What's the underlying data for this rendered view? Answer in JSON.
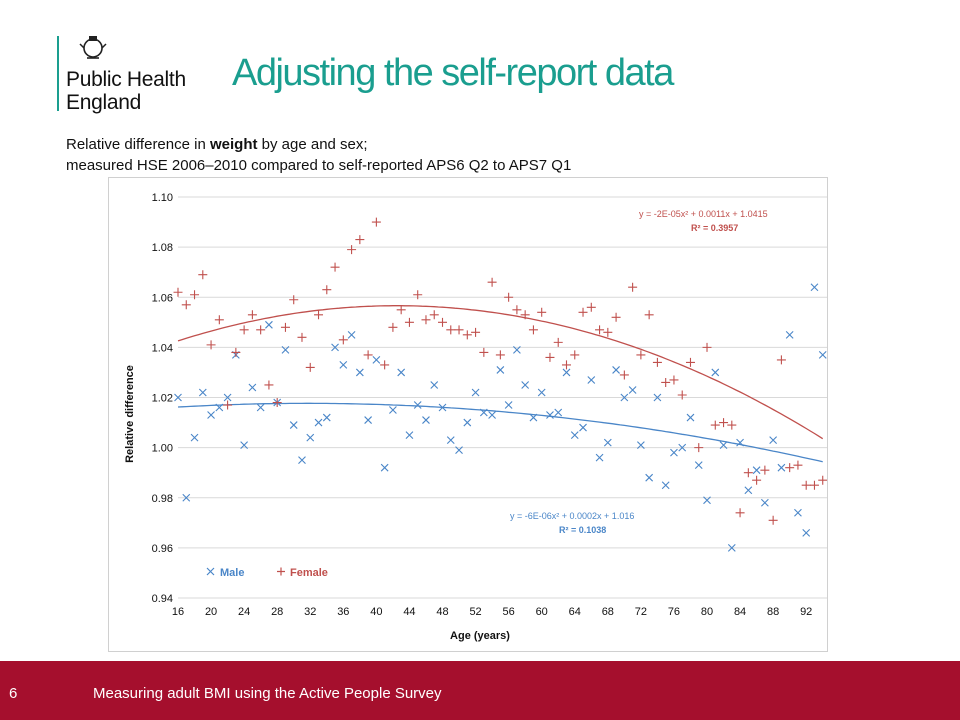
{
  "org": {
    "name_line1": "Public Health",
    "name_line2": "England"
  },
  "title": "Adjusting the self-report data",
  "subtitle": {
    "line1_before": "Relative difference in ",
    "line1_bold": "weight",
    "line1_after": " by age and sex;",
    "line2": "measured HSE 2006–2010 compared to self-reported APS6 Q2 to APS7 Q1"
  },
  "footer": {
    "page_number": "6",
    "text": "Measuring adult BMI using the Active People Survey"
  },
  "colors": {
    "accent": "#1a9e8f",
    "footer": "#a50f2d",
    "male": "#4a86c8",
    "female": "#c0504d"
  },
  "chart_data": {
    "type": "scatter",
    "xlabel": "Age (years)",
    "ylabel": "Relative difference",
    "xlim": [
      16,
      95
    ],
    "ylim": [
      0.94,
      1.1
    ],
    "x_ticks": [
      16,
      20,
      24,
      28,
      32,
      36,
      40,
      44,
      48,
      52,
      56,
      60,
      64,
      68,
      72,
      76,
      80,
      84,
      88,
      92
    ],
    "y_ticks": [
      0.94,
      0.96,
      0.98,
      1.0,
      1.02,
      1.04,
      1.06,
      1.08,
      1.1
    ],
    "y_tick_labels": [
      "0.94",
      "0.96",
      "0.98",
      "1.00",
      "1.02",
      "1.04",
      "1.06",
      "1.08",
      "1.10"
    ],
    "grid": "horizontal",
    "legend_position": "bottom-left",
    "series": [
      {
        "name": "Male",
        "marker": "x",
        "color": "#4a86c8",
        "x": [
          16,
          17,
          18,
          19,
          20,
          21,
          22,
          23,
          24,
          25,
          26,
          27,
          28,
          29,
          30,
          31,
          32,
          33,
          34,
          35,
          36,
          37,
          38,
          39,
          40,
          41,
          42,
          43,
          44,
          45,
          46,
          47,
          48,
          49,
          50,
          51,
          52,
          53,
          54,
          55,
          56,
          57,
          58,
          59,
          60,
          61,
          62,
          63,
          64,
          65,
          66,
          67,
          68,
          69,
          70,
          71,
          72,
          73,
          74,
          75,
          76,
          77,
          78,
          79,
          80,
          81,
          82,
          83,
          84,
          85,
          86,
          87,
          88,
          89,
          90,
          91,
          92,
          93,
          94
        ],
        "y": [
          1.02,
          0.98,
          1.004,
          1.022,
          1.013,
          1.016,
          1.02,
          1.037,
          1.001,
          1.024,
          1.016,
          1.049,
          1.018,
          1.039,
          1.009,
          0.995,
          1.004,
          1.01,
          1.012,
          1.04,
          1.033,
          1.045,
          1.03,
          1.011,
          1.035,
          0.992,
          1.015,
          1.03,
          1.005,
          1.017,
          1.011,
          1.025,
          1.016,
          1.003,
          0.999,
          1.01,
          1.022,
          1.014,
          1.013,
          1.031,
          1.017,
          1.039,
          1.025,
          1.012,
          1.022,
          1.013,
          1.014,
          1.03,
          1.005,
          1.008,
          1.027,
          0.996,
          1.002,
          1.031,
          1.02,
          1.023,
          1.001,
          0.988,
          1.02,
          0.985,
          0.998,
          1.0,
          1.012,
          0.993,
          0.979,
          1.03,
          1.001,
          0.96,
          1.002,
          0.983,
          0.991,
          0.978,
          1.003,
          0.992,
          1.045,
          0.974,
          0.966,
          1.064,
          1.037
        ]
      },
      {
        "name": "Female",
        "marker": "+",
        "color": "#c0504d",
        "x": [
          16,
          17,
          18,
          19,
          20,
          21,
          22,
          23,
          24,
          25,
          26,
          27,
          28,
          29,
          30,
          31,
          32,
          33,
          34,
          35,
          36,
          37,
          38,
          39,
          40,
          41,
          42,
          43,
          44,
          45,
          46,
          47,
          48,
          49,
          50,
          51,
          52,
          53,
          54,
          55,
          56,
          57,
          58,
          59,
          60,
          61,
          62,
          63,
          64,
          65,
          66,
          67,
          68,
          69,
          70,
          71,
          72,
          73,
          74,
          75,
          76,
          77,
          78,
          79,
          80,
          81,
          82,
          83,
          84,
          85,
          86,
          87,
          88,
          89,
          90,
          91,
          92,
          93,
          94
        ],
        "y": [
          1.062,
          1.057,
          1.061,
          1.069,
          1.041,
          1.051,
          1.017,
          1.038,
          1.047,
          1.053,
          1.047,
          1.025,
          1.018,
          1.048,
          1.059,
          1.044,
          1.032,
          1.053,
          1.063,
          1.072,
          1.043,
          1.079,
          1.083,
          1.037,
          1.09,
          1.033,
          1.048,
          1.055,
          1.05,
          1.061,
          1.051,
          1.053,
          1.05,
          1.047,
          1.047,
          1.045,
          1.046,
          1.038,
          1.066,
          1.037,
          1.06,
          1.055,
          1.053,
          1.047,
          1.054,
          1.036,
          1.042,
          1.033,
          1.037,
          1.054,
          1.056,
          1.047,
          1.046,
          1.052,
          1.029,
          1.064,
          1.037,
          1.053,
          1.034,
          1.026,
          1.027,
          1.021,
          1.034,
          1.0,
          1.04,
          1.009,
          1.01,
          1.009,
          0.974,
          0.99,
          0.987,
          0.991,
          0.971,
          1.035,
          0.992,
          0.993,
          0.985,
          0.985,
          0.987
        ]
      }
    ],
    "trendlines": [
      {
        "series": "Female",
        "equation": "y = -2E-05x² + 0.0011x + 1.0415",
        "r2": "R² = 0.3957",
        "a": -2e-05,
        "b": 0.0011,
        "c": 1.0415,
        "x_offset": 15
      },
      {
        "series": "Male",
        "equation": "y = -6E-06x² + 0.0002x + 1.016",
        "r2": "R² = 0.1038",
        "a": -6e-06,
        "b": 0.0002,
        "c": 1.016,
        "x_offset": 15
      }
    ]
  }
}
